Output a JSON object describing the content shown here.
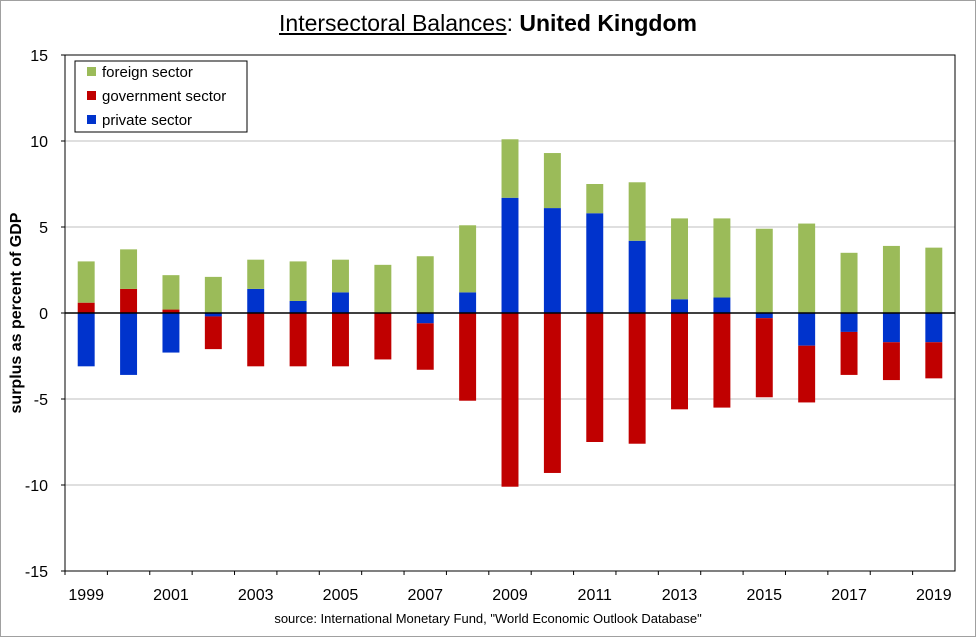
{
  "title": {
    "part1": "Intersectoral Balances",
    "separator": ": ",
    "part2": "United Kingdom"
  },
  "source": "source:  International Monetary Fund, \"World Economic Outlook Database\"",
  "chart_data": {
    "type": "bar",
    "stacked": true,
    "ylabel": "surplus as percent of GDP",
    "ylim": [
      -15,
      15
    ],
    "yticks": [
      -15,
      -10,
      -5,
      0,
      5,
      10,
      15
    ],
    "grid": true,
    "legend_position": "top-left",
    "categories": [
      "1999",
      "2000",
      "2001",
      "2002",
      "2003",
      "2004",
      "2005",
      "2006",
      "2007",
      "2008",
      "2009",
      "2010",
      "2011",
      "2012",
      "2013",
      "2014",
      "2015",
      "2016",
      "2017",
      "2018",
      "2019"
    ],
    "xtick_labels": [
      "1999",
      "",
      "2001",
      "",
      "2003",
      "",
      "2005",
      "",
      "2007",
      "",
      "2009",
      "",
      "2011",
      "",
      "2013",
      "",
      "2015",
      "",
      "2017",
      "",
      "2019"
    ],
    "series": [
      {
        "name": "foreign sector",
        "color": "#9bbb59",
        "values": [
          2.4,
          2.3,
          2.0,
          2.1,
          1.7,
          2.3,
          1.9,
          2.8,
          3.3,
          3.9,
          3.4,
          3.2,
          1.7,
          3.4,
          4.7,
          4.6,
          4.9,
          5.2,
          3.5,
          3.9,
          3.8
        ]
      },
      {
        "name": "government sector",
        "color": "#c00000",
        "values": [
          0.6,
          1.4,
          0.2,
          -1.9,
          -3.1,
          -3.1,
          -3.1,
          -2.7,
          -2.7,
          -5.1,
          -10.1,
          -9.3,
          -7.5,
          -7.6,
          -5.6,
          -5.5,
          -4.6,
          -3.3,
          -2.5,
          -2.2,
          -2.1
        ]
      },
      {
        "name": "private sector",
        "color": "#0033cc",
        "values": [
          -3.1,
          -3.6,
          -2.3,
          -0.2,
          1.4,
          0.7,
          1.2,
          0.0,
          -0.6,
          1.2,
          6.7,
          6.1,
          5.8,
          4.2,
          0.8,
          0.9,
          -0.3,
          -1.9,
          -1.1,
          -1.7,
          -1.7
        ]
      }
    ]
  }
}
